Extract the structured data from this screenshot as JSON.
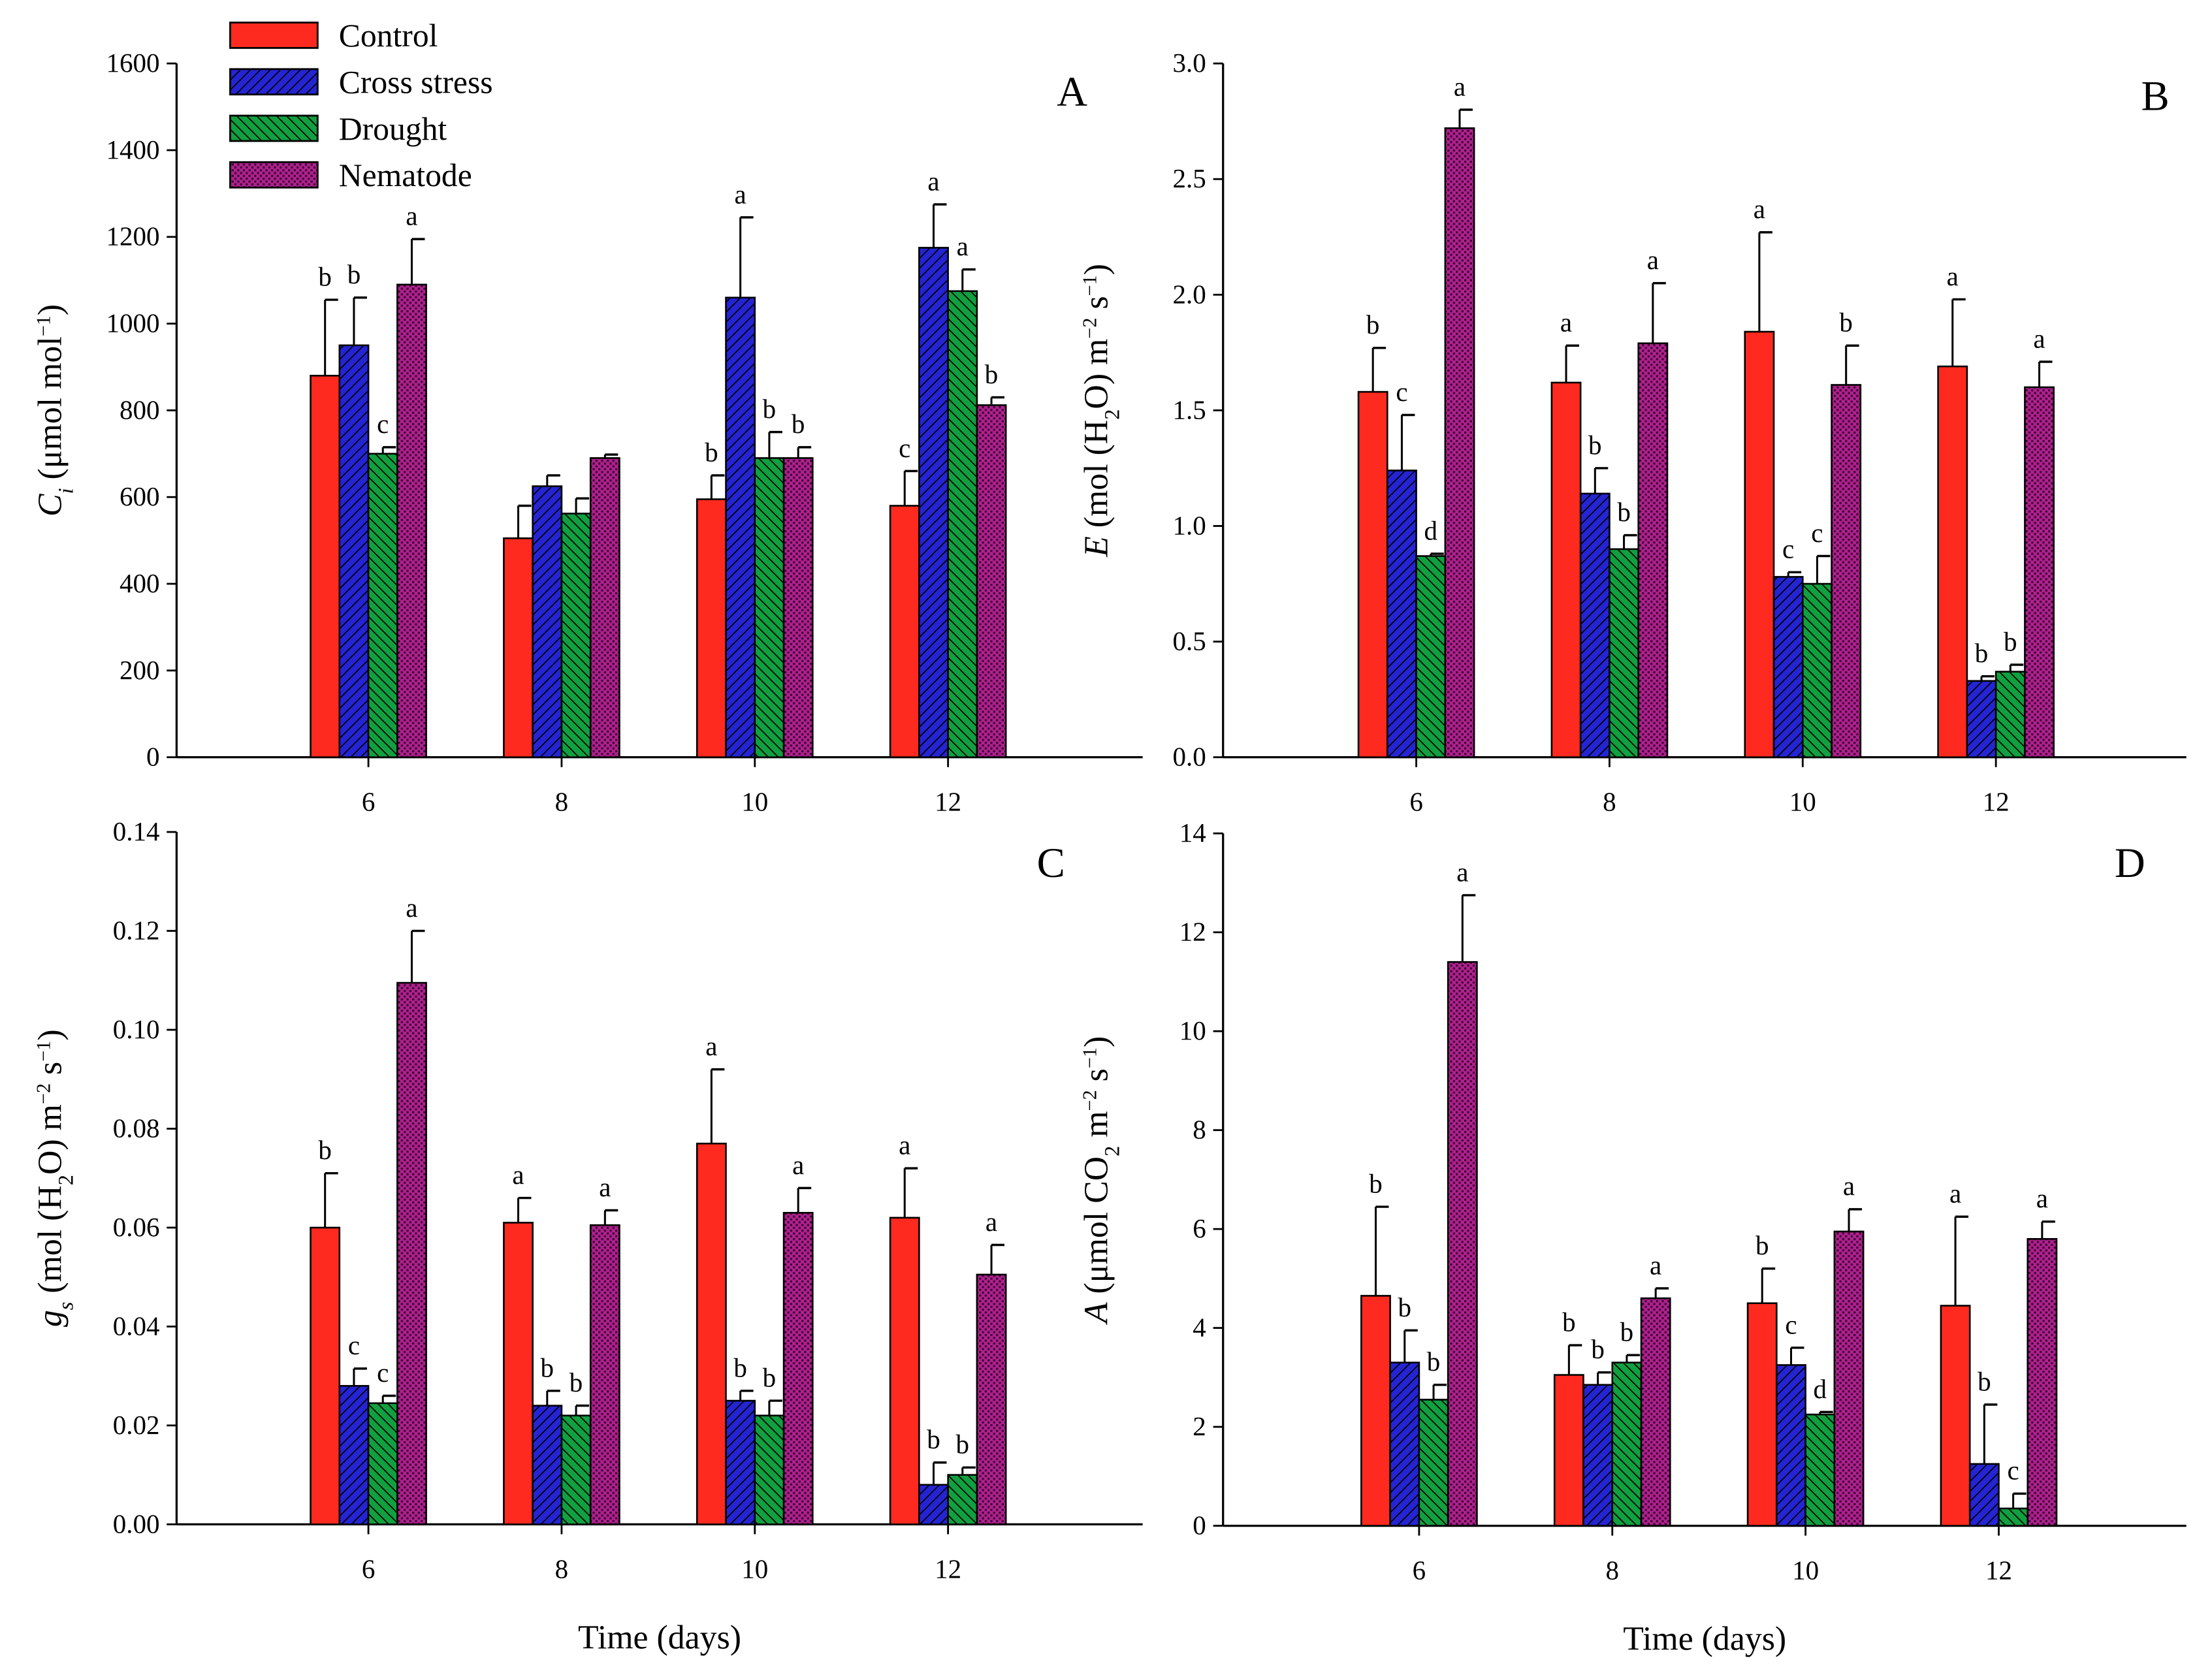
{
  "colors": {
    "Control": "#ff2a1f",
    "Cross stress": "#2424d4",
    "Drought": "#11a040",
    "Nematode": "#b0208f"
  },
  "legend": [
    "Control",
    "Cross stress",
    "Drought",
    "Nematode"
  ],
  "chart_data": [
    {
      "panel": "A",
      "type": "bar",
      "xlabel": "",
      "categories": [
        "6",
        "8",
        "10",
        "12"
      ],
      "ylim": [
        0,
        1600
      ],
      "yticks": [
        "0",
        "200",
        "400",
        "600",
        "800",
        "1000",
        "1200",
        "1400",
        "1600"
      ],
      "ylabel_parts": [
        {
          "text": "C",
          "style": "italic"
        },
        {
          "text": "i",
          "style": "sub-italic"
        },
        {
          "text": " (μmol mol",
          "style": ""
        },
        {
          "text": "−1",
          "style": "sup"
        },
        {
          "text": ")",
          "style": ""
        }
      ],
      "series": [
        {
          "name": "Control",
          "values": [
            880,
            505,
            595,
            580
          ],
          "errors": [
            175,
            75,
            55,
            80
          ],
          "letters": [
            "b",
            "",
            "b",
            "c"
          ]
        },
        {
          "name": "Cross stress",
          "values": [
            950,
            625,
            1060,
            1175
          ],
          "errors": [
            110,
            25,
            185,
            100
          ],
          "letters": [
            "b",
            "",
            "a",
            "a"
          ]
        },
        {
          "name": "Drought",
          "values": [
            700,
            562,
            690,
            1075
          ],
          "errors": [
            15,
            35,
            60,
            50
          ],
          "letters": [
            "c",
            "",
            "b",
            "a"
          ]
        },
        {
          "name": "Nematode",
          "values": [
            1090,
            690,
            690,
            812
          ],
          "errors": [
            105,
            8,
            25,
            18
          ],
          "letters": [
            "a",
            "",
            "b",
            "b"
          ]
        }
      ]
    },
    {
      "panel": "B",
      "type": "bar",
      "xlabel": "",
      "categories": [
        "6",
        "8",
        "10",
        "12"
      ],
      "ylim": [
        0,
        3.0
      ],
      "yticks": [
        "0.0",
        "0.5",
        "1.0",
        "1.5",
        "2.0",
        "2.5",
        "3.0"
      ],
      "ylabel_parts": [
        {
          "text": "E",
          "style": "italic"
        },
        {
          "text": " (mol (H",
          "style": ""
        },
        {
          "text": "2",
          "style": "sub"
        },
        {
          "text": "O) m",
          "style": ""
        },
        {
          "text": "−2",
          "style": "sup"
        },
        {
          "text": " s",
          "style": ""
        },
        {
          "text": "−1",
          "style": "sup"
        },
        {
          "text": ")",
          "style": ""
        }
      ],
      "series": [
        {
          "name": "Control",
          "values": [
            1.58,
            1.62,
            1.84,
            1.69
          ],
          "errors": [
            0.19,
            0.16,
            0.43,
            0.29
          ],
          "letters": [
            "b",
            "a",
            "a",
            "a"
          ]
        },
        {
          "name": "Cross stress",
          "values": [
            1.24,
            1.14,
            0.78,
            0.33
          ],
          "errors": [
            0.24,
            0.11,
            0.02,
            0.02
          ],
          "letters": [
            "c",
            "b",
            "c",
            "b"
          ]
        },
        {
          "name": "Drought",
          "values": [
            0.87,
            0.9,
            0.75,
            0.37
          ],
          "errors": [
            0.01,
            0.06,
            0.12,
            0.03
          ],
          "letters": [
            "d",
            "b",
            "c",
            "b"
          ]
        },
        {
          "name": "Nematode",
          "values": [
            2.72,
            1.79,
            1.61,
            1.6
          ],
          "errors": [
            0.08,
            0.26,
            0.17,
            0.11
          ],
          "letters": [
            "a",
            "a",
            "b",
            "a"
          ]
        }
      ]
    },
    {
      "panel": "C",
      "type": "bar",
      "xlabel": "Time (days)",
      "categories": [
        "6",
        "8",
        "10",
        "12"
      ],
      "ylim": [
        0,
        0.14
      ],
      "yticks": [
        "0.00",
        "0.02",
        "0.04",
        "0.06",
        "0.08",
        "0.10",
        "0.12",
        "0.14"
      ],
      "ylabel_parts": [
        {
          "text": "g",
          "style": "italic"
        },
        {
          "text": "s",
          "style": "sub-italic"
        },
        {
          "text": " (mol (H",
          "style": ""
        },
        {
          "text": "2",
          "style": "sub"
        },
        {
          "text": "O) m",
          "style": ""
        },
        {
          "text": "−2",
          "style": "sup"
        },
        {
          "text": " s",
          "style": ""
        },
        {
          "text": "−1",
          "style": "sup"
        },
        {
          "text": ")",
          "style": ""
        }
      ],
      "series": [
        {
          "name": "Control",
          "values": [
            0.06,
            0.061,
            0.077,
            0.062
          ],
          "errors": [
            0.011,
            0.005,
            0.015,
            0.01
          ],
          "letters": [
            "b",
            "a",
            "a",
            "a"
          ]
        },
        {
          "name": "Cross stress",
          "values": [
            0.028,
            0.024,
            0.025,
            0.008
          ],
          "errors": [
            0.0035,
            0.003,
            0.002,
            0.0045
          ],
          "letters": [
            "c",
            "b",
            "b",
            "b"
          ]
        },
        {
          "name": "Drought",
          "values": [
            0.0245,
            0.022,
            0.022,
            0.01
          ],
          "errors": [
            0.0015,
            0.002,
            0.003,
            0.0015
          ],
          "letters": [
            "c",
            "b",
            "b",
            "b"
          ]
        },
        {
          "name": "Nematode",
          "values": [
            0.1095,
            0.0605,
            0.063,
            0.0505
          ],
          "errors": [
            0.0105,
            0.003,
            0.005,
            0.006
          ],
          "letters": [
            "a",
            "a",
            "a",
            "a"
          ]
        }
      ]
    },
    {
      "panel": "D",
      "type": "bar",
      "xlabel": "Time (days)",
      "categories": [
        "6",
        "8",
        "10",
        "12"
      ],
      "ylim": [
        0,
        14
      ],
      "yticks": [
        "0",
        "2",
        "4",
        "6",
        "8",
        "10",
        "12",
        "14"
      ],
      "ylabel_parts": [
        {
          "text": "A",
          "style": "italic"
        },
        {
          "text": " (μmol CO",
          "style": ""
        },
        {
          "text": "2",
          "style": "sub"
        },
        {
          "text": " m",
          "style": ""
        },
        {
          "text": "−2",
          "style": "sup"
        },
        {
          "text": " s",
          "style": ""
        },
        {
          "text": "−1",
          "style": "sup"
        },
        {
          "text": ")",
          "style": ""
        }
      ],
      "series": [
        {
          "name": "Control",
          "values": [
            4.65,
            3.05,
            4.5,
            4.45
          ],
          "errors": [
            1.8,
            0.6,
            0.7,
            1.8
          ],
          "letters": [
            "b",
            "b",
            "b",
            "a"
          ]
        },
        {
          "name": "Cross stress",
          "values": [
            3.3,
            2.85,
            3.25,
            1.25
          ],
          "errors": [
            0.65,
            0.25,
            0.35,
            1.2
          ],
          "letters": [
            "b",
            "b",
            "c",
            "b"
          ]
        },
        {
          "name": "Drought",
          "values": [
            2.55,
            3.3,
            2.25,
            0.35
          ],
          "errors": [
            0.3,
            0.15,
            0.05,
            0.3
          ],
          "letters": [
            "b",
            "b",
            "d",
            "c"
          ]
        },
        {
          "name": "Nematode",
          "values": [
            11.4,
            4.6,
            5.95,
            5.8
          ],
          "errors": [
            1.35,
            0.2,
            0.45,
            0.35
          ],
          "letters": [
            "a",
            "a",
            "a",
            "a"
          ]
        }
      ]
    }
  ]
}
